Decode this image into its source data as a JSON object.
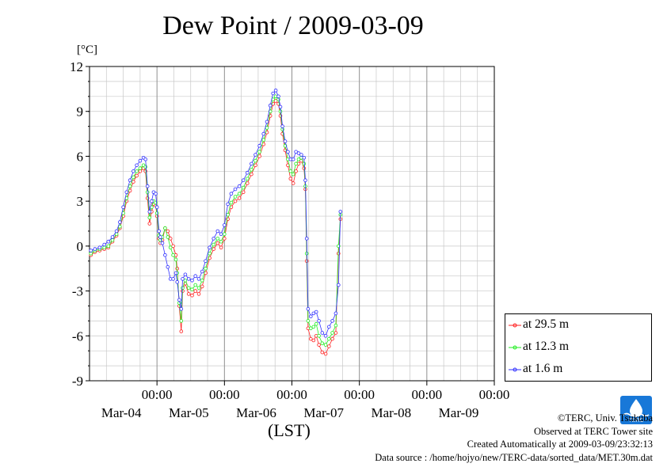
{
  "chart_data": {
    "type": "line",
    "title": "Dew Point / 2009-03-09",
    "ylabel": "[°C]",
    "xlabel": "(LST)",
    "ylim": [
      -9,
      12
    ],
    "yticks": [
      12,
      9,
      6,
      3,
      0,
      -3,
      -6,
      -9
    ],
    "xlim": [
      -1,
      5
    ],
    "x_units": "days relative to Mar-04 00:00 LST",
    "x_tick_labels": [
      {
        "time": "00:00",
        "date": "Mar-04"
      },
      {
        "time": "00:00",
        "date": "Mar-05"
      },
      {
        "time": "00:00",
        "date": "Mar-06"
      },
      {
        "time": "00:00",
        "date": "Mar-07"
      },
      {
        "time": "00:00",
        "date": "Mar-08"
      },
      {
        "time": "00:00",
        "date": "Mar-09"
      }
    ],
    "grid": true,
    "legend_position": "right",
    "series": [
      {
        "name": "at 29.5 m",
        "color": "#ff2020",
        "points": [
          [
            -0.98,
            -0.6
          ],
          [
            -0.92,
            -0.4
          ],
          [
            -0.85,
            -0.3
          ],
          [
            -0.78,
            -0.2
          ],
          [
            -0.72,
            -0.1
          ],
          [
            -0.66,
            0.3
          ],
          [
            -0.6,
            0.7
          ],
          [
            -0.55,
            1.2
          ],
          [
            -0.5,
            2.0
          ],
          [
            -0.45,
            3.0
          ],
          [
            -0.4,
            3.7
          ],
          [
            -0.35,
            4.3
          ],
          [
            -0.3,
            4.7
          ],
          [
            -0.25,
            5.0
          ],
          [
            -0.2,
            5.2
          ],
          [
            -0.17,
            5.0
          ],
          [
            -0.14,
            3.2
          ],
          [
            -0.11,
            1.5
          ],
          [
            -0.08,
            2.3
          ],
          [
            -0.05,
            2.8
          ],
          [
            -0.02,
            2.7
          ],
          [
            0.0,
            2.0
          ],
          [
            0.03,
            0.5
          ],
          [
            0.05,
            0.2
          ],
          [
            0.08,
            0.4
          ],
          [
            0.12,
            1.2
          ],
          [
            0.16,
            1.0
          ],
          [
            0.2,
            0.5
          ],
          [
            0.24,
            0.0
          ],
          [
            0.28,
            -0.6
          ],
          [
            0.3,
            -1.5
          ],
          [
            0.33,
            -4.0
          ],
          [
            0.36,
            -5.7
          ],
          [
            0.38,
            -3.0
          ],
          [
            0.42,
            -2.5
          ],
          [
            0.47,
            -3.2
          ],
          [
            0.52,
            -3.3
          ],
          [
            0.57,
            -3.0
          ],
          [
            0.62,
            -3.2
          ],
          [
            0.67,
            -2.7
          ],
          [
            0.72,
            -1.8
          ],
          [
            0.78,
            -0.8
          ],
          [
            0.84,
            -0.2
          ],
          [
            0.9,
            0.2
          ],
          [
            0.95,
            -0.1
          ],
          [
            1.0,
            0.5
          ],
          [
            1.05,
            1.8
          ],
          [
            1.1,
            2.6
          ],
          [
            1.16,
            3.0
          ],
          [
            1.22,
            3.2
          ],
          [
            1.28,
            3.6
          ],
          [
            1.34,
            4.2
          ],
          [
            1.4,
            4.8
          ],
          [
            1.46,
            5.4
          ],
          [
            1.52,
            6.0
          ],
          [
            1.58,
            6.8
          ],
          [
            1.63,
            7.6
          ],
          [
            1.68,
            8.7
          ],
          [
            1.72,
            9.5
          ],
          [
            1.76,
            9.7
          ],
          [
            1.8,
            9.5
          ],
          [
            1.83,
            8.7
          ],
          [
            1.86,
            7.5
          ],
          [
            1.9,
            6.4
          ],
          [
            1.94,
            5.4
          ],
          [
            1.98,
            4.5
          ],
          [
            2.02,
            4.2
          ],
          [
            2.06,
            5.0
          ],
          [
            2.1,
            5.5
          ],
          [
            2.14,
            5.7
          ],
          [
            2.18,
            5.2
          ],
          [
            2.2,
            3.8
          ],
          [
            2.22,
            -1.0
          ],
          [
            2.24,
            -5.5
          ],
          [
            2.28,
            -6.2
          ],
          [
            2.32,
            -6.3
          ],
          [
            2.36,
            -6.0
          ],
          [
            2.4,
            -6.6
          ],
          [
            2.45,
            -7.1
          ],
          [
            2.5,
            -7.2
          ],
          [
            2.55,
            -6.7
          ],
          [
            2.6,
            -6.2
          ],
          [
            2.65,
            -5.8
          ],
          [
            2.69,
            -0.5
          ],
          [
            2.72,
            1.8
          ]
        ]
      },
      {
        "name": "at 12.3 m",
        "color": "#20ee20",
        "points": [
          [
            -0.98,
            -0.5
          ],
          [
            -0.92,
            -0.3
          ],
          [
            -0.85,
            -0.2
          ],
          [
            -0.78,
            -0.1
          ],
          [
            -0.72,
            0.0
          ],
          [
            -0.66,
            0.4
          ],
          [
            -0.6,
            0.8
          ],
          [
            -0.55,
            1.3
          ],
          [
            -0.5,
            2.2
          ],
          [
            -0.45,
            3.2
          ],
          [
            -0.4,
            4.0
          ],
          [
            -0.35,
            4.6
          ],
          [
            -0.3,
            5.0
          ],
          [
            -0.25,
            5.2
          ],
          [
            -0.2,
            5.4
          ],
          [
            -0.17,
            5.3
          ],
          [
            -0.14,
            3.6
          ],
          [
            -0.11,
            1.9
          ],
          [
            -0.08,
            2.6
          ],
          [
            -0.05,
            3.0
          ],
          [
            -0.02,
            2.9
          ],
          [
            0.0,
            2.2
          ],
          [
            0.03,
            0.7
          ],
          [
            0.05,
            0.4
          ],
          [
            0.08,
            0.6
          ],
          [
            0.12,
            1.2
          ],
          [
            0.16,
            0.6
          ],
          [
            0.2,
            -0.1
          ],
          [
            0.24,
            -0.6
          ],
          [
            0.28,
            -0.9
          ],
          [
            0.3,
            -1.8
          ],
          [
            0.33,
            -3.8
          ],
          [
            0.36,
            -5.0
          ],
          [
            0.38,
            -2.8
          ],
          [
            0.42,
            -2.3
          ],
          [
            0.47,
            -2.8
          ],
          [
            0.52,
            -2.9
          ],
          [
            0.57,
            -2.6
          ],
          [
            0.62,
            -2.8
          ],
          [
            0.67,
            -2.3
          ],
          [
            0.72,
            -1.5
          ],
          [
            0.78,
            -0.5
          ],
          [
            0.84,
            0.1
          ],
          [
            0.9,
            0.5
          ],
          [
            0.95,
            0.3
          ],
          [
            1.0,
            0.8
          ],
          [
            1.05,
            2.1
          ],
          [
            1.1,
            2.9
          ],
          [
            1.16,
            3.3
          ],
          [
            1.22,
            3.5
          ],
          [
            1.28,
            3.9
          ],
          [
            1.34,
            4.5
          ],
          [
            1.4,
            5.1
          ],
          [
            1.46,
            5.7
          ],
          [
            1.52,
            6.3
          ],
          [
            1.58,
            7.1
          ],
          [
            1.63,
            7.9
          ],
          [
            1.68,
            9.0
          ],
          [
            1.72,
            9.8
          ],
          [
            1.76,
            10.0
          ],
          [
            1.8,
            9.8
          ],
          [
            1.83,
            9.0
          ],
          [
            1.86,
            7.8
          ],
          [
            1.9,
            6.7
          ],
          [
            1.94,
            5.8
          ],
          [
            1.98,
            5.0
          ],
          [
            2.02,
            4.8
          ],
          [
            2.06,
            5.5
          ],
          [
            2.1,
            5.8
          ],
          [
            2.14,
            5.9
          ],
          [
            2.18,
            5.5
          ],
          [
            2.2,
            4.0
          ],
          [
            2.22,
            -0.5
          ],
          [
            2.24,
            -5.0
          ],
          [
            2.28,
            -5.5
          ],
          [
            2.32,
            -5.4
          ],
          [
            2.36,
            -5.2
          ],
          [
            2.4,
            -6.0
          ],
          [
            2.45,
            -6.5
          ],
          [
            2.5,
            -6.6
          ],
          [
            2.55,
            -6.2
          ],
          [
            2.6,
            -5.8
          ],
          [
            2.65,
            -5.3
          ],
          [
            2.69,
            0.0
          ],
          [
            2.72,
            2.1
          ]
        ]
      },
      {
        "name": "at 1.6 m",
        "color": "#3030ff",
        "points": [
          [
            -0.98,
            -0.3
          ],
          [
            -0.92,
            -0.2
          ],
          [
            -0.85,
            -0.1
          ],
          [
            -0.78,
            0.1
          ],
          [
            -0.72,
            0.3
          ],
          [
            -0.66,
            0.6
          ],
          [
            -0.6,
            1.0
          ],
          [
            -0.55,
            1.6
          ],
          [
            -0.5,
            2.6
          ],
          [
            -0.45,
            3.6
          ],
          [
            -0.4,
            4.4
          ],
          [
            -0.35,
            5.0
          ],
          [
            -0.3,
            5.4
          ],
          [
            -0.25,
            5.7
          ],
          [
            -0.2,
            5.9
          ],
          [
            -0.17,
            5.8
          ],
          [
            -0.14,
            4.0
          ],
          [
            -0.11,
            2.3
          ],
          [
            -0.08,
            3.0
          ],
          [
            -0.05,
            3.6
          ],
          [
            -0.02,
            3.5
          ],
          [
            0.0,
            2.6
          ],
          [
            0.03,
            1.0
          ],
          [
            0.05,
            0.6
          ],
          [
            0.08,
            0.2
          ],
          [
            0.12,
            -0.6
          ],
          [
            0.16,
            -1.4
          ],
          [
            0.2,
            -2.2
          ],
          [
            0.24,
            -2.2
          ],
          [
            0.28,
            -1.8
          ],
          [
            0.3,
            -2.4
          ],
          [
            0.33,
            -3.6
          ],
          [
            0.36,
            -4.2
          ],
          [
            0.38,
            -2.2
          ],
          [
            0.42,
            -1.9
          ],
          [
            0.47,
            -2.2
          ],
          [
            0.52,
            -2.3
          ],
          [
            0.57,
            -2.0
          ],
          [
            0.62,
            -2.2
          ],
          [
            0.67,
            -1.7
          ],
          [
            0.72,
            -1.0
          ],
          [
            0.78,
            -0.1
          ],
          [
            0.84,
            0.5
          ],
          [
            0.9,
            1.0
          ],
          [
            0.95,
            0.8
          ],
          [
            1.0,
            1.4
          ],
          [
            1.05,
            2.8
          ],
          [
            1.1,
            3.5
          ],
          [
            1.16,
            3.8
          ],
          [
            1.22,
            4.0
          ],
          [
            1.28,
            4.4
          ],
          [
            1.34,
            4.9
          ],
          [
            1.4,
            5.5
          ],
          [
            1.46,
            6.1
          ],
          [
            1.52,
            6.7
          ],
          [
            1.58,
            7.5
          ],
          [
            1.63,
            8.3
          ],
          [
            1.68,
            9.4
          ],
          [
            1.72,
            10.2
          ],
          [
            1.76,
            10.4
          ],
          [
            1.8,
            10.0
          ],
          [
            1.83,
            9.3
          ],
          [
            1.86,
            8.0
          ],
          [
            1.9,
            7.0
          ],
          [
            1.94,
            6.3
          ],
          [
            1.98,
            5.8
          ],
          [
            2.02,
            5.8
          ],
          [
            2.06,
            6.3
          ],
          [
            2.1,
            6.2
          ],
          [
            2.14,
            6.1
          ],
          [
            2.18,
            5.9
          ],
          [
            2.2,
            4.4
          ],
          [
            2.22,
            0.5
          ],
          [
            2.24,
            -4.2
          ],
          [
            2.28,
            -4.7
          ],
          [
            2.32,
            -4.5
          ],
          [
            2.36,
            -4.4
          ],
          [
            2.4,
            -5.0
          ],
          [
            2.45,
            -5.8
          ],
          [
            2.5,
            -6.0
          ],
          [
            2.55,
            -5.4
          ],
          [
            2.6,
            -5.0
          ],
          [
            2.65,
            -4.5
          ],
          [
            2.69,
            -2.6
          ],
          [
            2.72,
            2.3
          ]
        ]
      }
    ]
  },
  "credits": {
    "copyright": "©TERC, Univ. Tsukuba",
    "site": "Observed at TERC Tower site",
    "created": "Created Automatically at 2009-03-09/23:32:13",
    "source": "Data source : /home/hojyo/new/TERC-data/sorted_data/MET.30m.dat"
  },
  "logo": {
    "text": "TERC",
    "color": "#1878d8"
  }
}
